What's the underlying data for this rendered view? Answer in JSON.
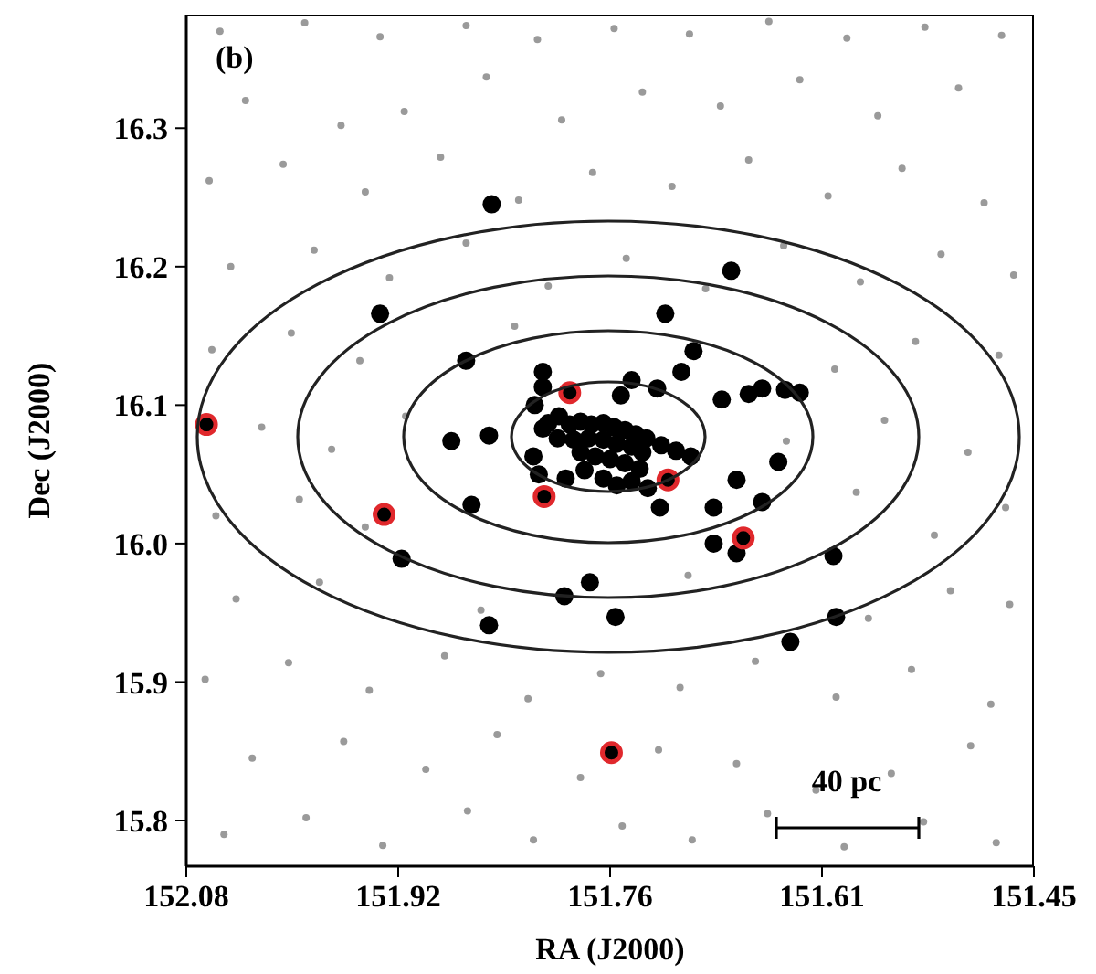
{
  "chart_data": {
    "type": "scatter",
    "xlabel": "RA (J2000)",
    "ylabel": "Dec (J2000)",
    "xlim": [
      152.08,
      151.45
    ],
    "xticks": [
      152.08,
      {
        "value": 151.9225,
        "label": "151.92"
      },
      {
        "value": 151.765,
        "label": "151.76"
      },
      {
        "value": 151.6075,
        "label": "151.61"
      },
      151.45
    ],
    "ylim": [
      15.767,
      16.382
    ],
    "yticks": [
      15.8,
      15.9,
      {
        "value": 16,
        "label": "16.0"
      },
      16.1,
      16.2,
      16.3
    ],
    "marker": "circle",
    "grid": false,
    "legend": false,
    "annotations": [
      "(b)",
      "40 pc"
    ],
    "series": [
      {
        "color": "#9a9a9a",
        "x": [
          152.052,
          151.991,
          151.934,
          151.871,
          151.822,
          151.756,
          151.704,
          151.648,
          151.591,
          151.532,
          151.478,
          152.031,
          151.963,
          151.902,
          151.849,
          151.787,
          151.729,
          151.671,
          151.612,
          151.556,
          151.497,
          152.066,
          152.004,
          151.944,
          151.888,
          151.826,
          151.772,
          151.713,
          151.657,
          151.597,
          151.541,
          151.482,
          152.043,
          151.981,
          151.861,
          151.707,
          151.573,
          151.512,
          151.468,
          152.058,
          151.996,
          151.947,
          151.582,
          151.524,
          151.471,
          152.024,
          151.972,
          151.917,
          151.634,
          151.561,
          151.499,
          152.061,
          152.002,
          151.951,
          151.836,
          151.598,
          151.538,
          151.476,
          152.047,
          151.985,
          151.929,
          151.872,
          151.811,
          151.753,
          151.694,
          151.636,
          151.579,
          151.519,
          151.465,
          152.063,
          152.008,
          151.947,
          151.891,
          151.833,
          151.778,
          151.719,
          151.662,
          151.603,
          151.548,
          151.487,
          152.036,
          151.965,
          151.918,
          151.857,
          151.801,
          151.741,
          151.683,
          151.624,
          151.566,
          151.506,
          152.055,
          151.992,
          151.936,
          151.872,
          151.819,
          151.762,
          151.706,
          151.647,
          151.589,
          151.531,
          151.474
        ],
        "values": [
          15.79,
          15.802,
          15.782,
          15.807,
          15.786,
          15.796,
          15.786,
          15.805,
          15.781,
          15.799,
          15.784,
          15.845,
          15.857,
          15.837,
          15.862,
          15.831,
          15.851,
          15.841,
          15.822,
          15.834,
          15.854,
          15.902,
          15.914,
          15.894,
          15.919,
          15.888,
          15.906,
          15.896,
          15.915,
          15.889,
          15.909,
          15.884,
          15.96,
          15.972,
          15.952,
          15.977,
          15.946,
          15.966,
          15.956,
          16.02,
          16.032,
          16.012,
          16.037,
          16.006,
          16.026,
          16.084,
          16.068,
          16.092,
          16.074,
          16.089,
          16.066,
          16.14,
          16.152,
          16.132,
          16.157,
          16.126,
          16.146,
          16.136,
          16.2,
          16.212,
          16.192,
          16.217,
          16.186,
          16.206,
          16.184,
          16.215,
          16.189,
          16.209,
          16.194,
          16.262,
          16.274,
          16.254,
          16.279,
          16.248,
          16.268,
          16.258,
          16.277,
          16.251,
          16.271,
          16.246,
          16.32,
          16.302,
          16.312,
          16.337,
          16.306,
          16.326,
          16.316,
          16.335,
          16.309,
          16.329,
          16.37,
          16.376,
          16.366,
          16.374,
          16.364,
          16.372,
          16.368,
          16.377,
          16.365,
          16.373,
          16.367
        ]
      },
      {
        "color": "#000000",
        "x": [
          151.853,
          151.936,
          151.675,
          151.724,
          151.703,
          151.712,
          151.749,
          151.73,
          151.682,
          151.662,
          151.652,
          151.635,
          151.624,
          151.757,
          151.872,
          151.815,
          151.815,
          151.821,
          151.883,
          151.855,
          151.815,
          151.822,
          151.818,
          151.868,
          151.92,
          151.78,
          151.799,
          151.761,
          151.855,
          151.64,
          151.671,
          151.688,
          151.652,
          151.728,
          151.688,
          151.671,
          151.599,
          151.597,
          151.631,
          151.811,
          151.803,
          151.795,
          151.787,
          151.779,
          151.77,
          151.762,
          151.754,
          151.746,
          151.738,
          151.804,
          151.792,
          151.781,
          151.77,
          151.76,
          151.749,
          151.741,
          151.727,
          151.716,
          151.705,
          151.787,
          151.776,
          151.765,
          151.754,
          151.743,
          151.784,
          151.77,
          151.76,
          151.749,
          151.737,
          151.798
        ],
        "values": [
          16.245,
          16.166,
          16.197,
          16.166,
          16.139,
          16.124,
          16.118,
          16.112,
          16.104,
          16.108,
          16.112,
          16.111,
          16.109,
          16.107,
          16.132,
          16.124,
          16.113,
          16.1,
          16.074,
          16.078,
          16.083,
          16.063,
          16.05,
          16.028,
          15.989,
          15.972,
          15.962,
          15.947,
          15.941,
          16.059,
          16.046,
          16.026,
          16.03,
          16.026,
          16.0,
          15.993,
          15.991,
          15.947,
          15.929,
          16.087,
          16.092,
          16.086,
          16.088,
          16.086,
          16.087,
          16.084,
          16.082,
          16.079,
          16.076,
          16.076,
          16.075,
          16.076,
          16.075,
          16.072,
          16.07,
          16.066,
          16.071,
          16.067,
          16.063,
          16.066,
          16.063,
          16.061,
          16.058,
          16.054,
          16.053,
          16.047,
          16.042,
          16.045,
          16.04,
          16.047
        ]
      },
      {
        "color": "#e0282c",
        "x": [
          152.065,
          151.933,
          151.814,
          151.795,
          151.722,
          151.666,
          151.764
        ],
        "values": [
          16.086,
          16.021,
          16.034,
          16.109,
          16.046,
          16.004,
          15.849
        ]
      }
    ]
  }
}
